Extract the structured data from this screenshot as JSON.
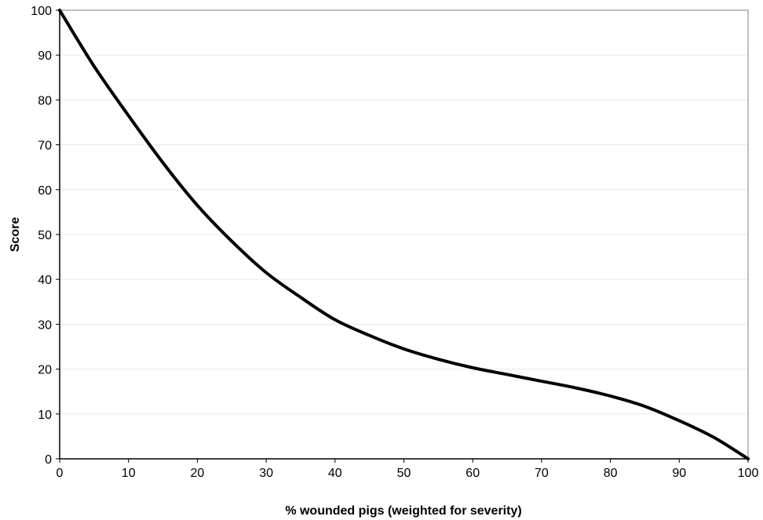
{
  "chart_data": {
    "type": "line",
    "title": "",
    "xlabel": "% wounded pigs (weighted for severity)",
    "ylabel": "Score",
    "xlim": [
      0,
      100
    ],
    "ylim": [
      0,
      100
    ],
    "x_ticks": [
      0,
      10,
      20,
      30,
      40,
      50,
      60,
      70,
      80,
      90,
      100
    ],
    "y_ticks": [
      0,
      10,
      20,
      30,
      40,
      50,
      60,
      70,
      80,
      90,
      100
    ],
    "grid": "horizontal",
    "legend": "none",
    "series": [
      {
        "color": "#000000",
        "x": [
          0,
          5,
          10,
          15,
          20,
          25,
          30,
          35,
          40,
          45,
          50,
          55,
          60,
          65,
          70,
          75,
          80,
          85,
          90,
          95,
          100
        ],
        "y": [
          100,
          87.5,
          76.5,
          66,
          56.5,
          48.5,
          41.5,
          36,
          31,
          27.5,
          24.5,
          22.2,
          20.3,
          18.8,
          17.3,
          15.8,
          14,
          11.7,
          8.5,
          4.8,
          0
        ]
      }
    ]
  },
  "colors": {
    "line": "#000000",
    "plot_border": "#808080",
    "gridline": "#e8e8e8",
    "axis": "#000000"
  }
}
